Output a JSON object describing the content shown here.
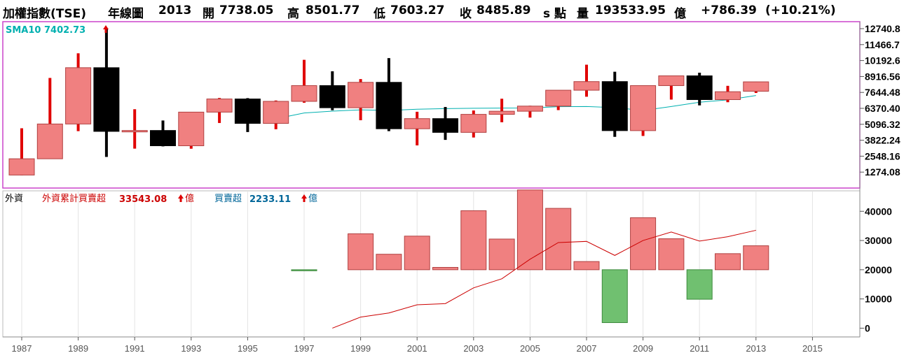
{
  "header": {
    "title": "加權指數(TSE)",
    "period": "年線圖",
    "year": "2013",
    "open_label": "開",
    "open": "7738.05",
    "high_label": "高",
    "high": "8501.77",
    "low_label": "低",
    "low": "7603.27",
    "close_label": "收",
    "close": "8485.89",
    "unit1": "s 點",
    "volume_label": "量",
    "volume": "193533.95",
    "unit2": "億",
    "change": "+786.39",
    "change_pct": "(+10.21%)"
  },
  "price_panel": {
    "sma_label": "SMA10 7402.73",
    "sma_color": "#00b0b0",
    "up_color": "#f08080",
    "down_color": "#000000",
    "wick_up_color": "#e00000",
    "border_color": "#cc44cc"
  },
  "foreign_panel": {
    "panel_label": "外資",
    "cum_label": "外資累計買賣超",
    "cum_value": "33543.08",
    "cum_unit": "億",
    "net_label": "買賣超",
    "net_value": "2233.11",
    "net_unit": "億",
    "cum_color": "#cc0000",
    "net_color": "#006699",
    "buy_color": "#f08080",
    "sell_color": "#70c070"
  },
  "chart_data": [
    {
      "type": "candlestick",
      "x_ticks": [
        "1987",
        "1989",
        "1991",
        "1993",
        "1995",
        "1997",
        "1999",
        "2001",
        "2003",
        "2005",
        "2007",
        "2009",
        "2011",
        "2013",
        "2015"
      ],
      "y_ticks": [
        "12740.8",
        "11466.7",
        "10192.6",
        "8916.56",
        "7644.48",
        "6370.40",
        "5096.32",
        "3822.24",
        "2548.16",
        "1274.08"
      ],
      "ylim": [
        0,
        13300
      ],
      "candles": [
        {
          "year": 1987,
          "open": 1040,
          "high": 4780,
          "low": 1020,
          "close": 2340
        },
        {
          "year": 1988,
          "open": 2340,
          "high": 8800,
          "low": 2340,
          "close": 5120
        },
        {
          "year": 1989,
          "open": 5120,
          "high": 10770,
          "low": 4550,
          "close": 9620
        },
        {
          "year": 1990,
          "open": 9620,
          "high": 12700,
          "low": 2490,
          "close": 4530
        },
        {
          "year": 1991,
          "open": 4530,
          "high": 6300,
          "low": 3150,
          "close": 4600
        },
        {
          "year": 1992,
          "open": 4600,
          "high": 5400,
          "low": 3330,
          "close": 3380
        },
        {
          "year": 1993,
          "open": 3380,
          "high": 6070,
          "low": 3140,
          "close": 6070
        },
        {
          "year": 1994,
          "open": 6070,
          "high": 7200,
          "low": 5200,
          "close": 7120
        },
        {
          "year": 1995,
          "open": 7120,
          "high": 7190,
          "low": 4480,
          "close": 5170
        },
        {
          "year": 1996,
          "open": 5170,
          "high": 7000,
          "low": 4700,
          "close": 6930
        },
        {
          "year": 1997,
          "open": 6930,
          "high": 10250,
          "low": 6820,
          "close": 8190
        },
        {
          "year": 1998,
          "open": 8190,
          "high": 9330,
          "low": 6220,
          "close": 6420
        },
        {
          "year": 1999,
          "open": 6420,
          "high": 8710,
          "low": 5420,
          "close": 8450
        },
        {
          "year": 2000,
          "open": 8450,
          "high": 10390,
          "low": 4550,
          "close": 4740
        },
        {
          "year": 2001,
          "open": 4740,
          "high": 6100,
          "low": 3410,
          "close": 5550
        },
        {
          "year": 2002,
          "open": 5550,
          "high": 6480,
          "low": 3850,
          "close": 4450
        },
        {
          "year": 2003,
          "open": 4450,
          "high": 6200,
          "low": 4040,
          "close": 5890
        },
        {
          "year": 2004,
          "open": 5890,
          "high": 7140,
          "low": 5260,
          "close": 6140
        },
        {
          "year": 2005,
          "open": 6140,
          "high": 6580,
          "low": 5630,
          "close": 6550
        },
        {
          "year": 2006,
          "open": 6550,
          "high": 7820,
          "low": 6230,
          "close": 7820
        },
        {
          "year": 2007,
          "open": 7820,
          "high": 9860,
          "low": 7300,
          "close": 8510
        },
        {
          "year": 2008,
          "open": 8510,
          "high": 9300,
          "low": 4090,
          "close": 4590
        },
        {
          "year": 2009,
          "open": 4590,
          "high": 8200,
          "low": 4160,
          "close": 8190
        },
        {
          "year": 2010,
          "open": 8190,
          "high": 8990,
          "low": 7070,
          "close": 8970
        },
        {
          "year": 2011,
          "open": 8970,
          "high": 9220,
          "low": 6610,
          "close": 7070
        },
        {
          "year": 2012,
          "open": 7070,
          "high": 8170,
          "low": 6860,
          "close": 7700
        },
        {
          "year": 2013,
          "open": 7740,
          "high": 8500,
          "low": 7600,
          "close": 8490
        }
      ],
      "sma10": [
        {
          "year": 1996,
          "value": 5540
        },
        {
          "year": 1997,
          "value": 6000
        },
        {
          "year": 1998,
          "value": 6150
        },
        {
          "year": 1999,
          "value": 6250
        },
        {
          "year": 2000,
          "value": 6200
        },
        {
          "year": 2001,
          "value": 6300
        },
        {
          "year": 2002,
          "value": 6350
        },
        {
          "year": 2003,
          "value": 6380
        },
        {
          "year": 2004,
          "value": 6390
        },
        {
          "year": 2005,
          "value": 6400
        },
        {
          "year": 2006,
          "value": 6500
        },
        {
          "year": 2007,
          "value": 6520
        },
        {
          "year": 2008,
          "value": 6430
        },
        {
          "year": 2009,
          "value": 6200
        },
        {
          "year": 2010,
          "value": 6520
        },
        {
          "year": 2011,
          "value": 6860
        },
        {
          "year": 2012,
          "value": 7050
        },
        {
          "year": 2013,
          "value": 7400
        }
      ]
    },
    {
      "type": "bar",
      "x_ticks": [
        "1987",
        "1989",
        "1991",
        "1993",
        "1995",
        "1997",
        "1999",
        "2001",
        "2003",
        "2005",
        "2007",
        "2009",
        "2011",
        "2013",
        "2015"
      ],
      "y_ticks": [
        "40000",
        "30000",
        "20000",
        "10000",
        "0"
      ],
      "ylim": [
        -3000,
        47000
      ],
      "bar_baseline": 20000,
      "net_buy_sell": [
        {
          "year": 1997,
          "value": -300
        },
        {
          "year": 1999,
          "value": 12300
        },
        {
          "year": 2000,
          "value": 5300
        },
        {
          "year": 2001,
          "value": 11500
        },
        {
          "year": 2002,
          "value": 800
        },
        {
          "year": 2003,
          "value": 20200
        },
        {
          "year": 2004,
          "value": 10500
        },
        {
          "year": 2005,
          "value": 27300
        },
        {
          "year": 2006,
          "value": 21000
        },
        {
          "year": 2007,
          "value": 2800
        },
        {
          "year": 2008,
          "value": -18100
        },
        {
          "year": 2009,
          "value": 17800
        },
        {
          "year": 2010,
          "value": 10600
        },
        {
          "year": 2011,
          "value": -10100
        },
        {
          "year": 2012,
          "value": 5500
        },
        {
          "year": 2013,
          "value": 8200
        }
      ],
      "cumulative": [
        {
          "year": 1998,
          "value": 0
        },
        {
          "year": 1999,
          "value": 3800
        },
        {
          "year": 2000,
          "value": 5200
        },
        {
          "year": 2001,
          "value": 8000
        },
        {
          "year": 2002,
          "value": 8400
        },
        {
          "year": 2003,
          "value": 13800
        },
        {
          "year": 2004,
          "value": 16900
        },
        {
          "year": 2005,
          "value": 23600
        },
        {
          "year": 2006,
          "value": 29300
        },
        {
          "year": 2007,
          "value": 29700
        },
        {
          "year": 2008,
          "value": 24900
        },
        {
          "year": 2009,
          "value": 30000
        },
        {
          "year": 2010,
          "value": 32900
        },
        {
          "year": 2011,
          "value": 29800
        },
        {
          "year": 2012,
          "value": 31300
        },
        {
          "year": 2013,
          "value": 33500
        }
      ]
    }
  ]
}
